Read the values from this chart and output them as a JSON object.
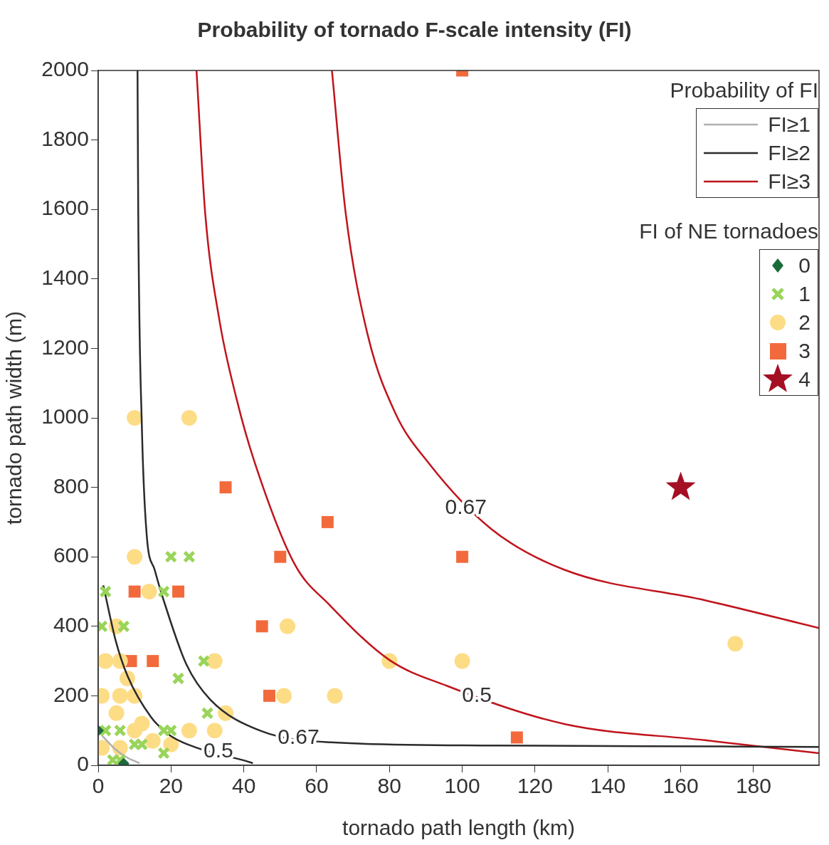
{
  "chart_data": {
    "type": "scatter",
    "title": "Probability of tornado F-scale intensity (FI)",
    "xlabel": "tornado path length (km)",
    "ylabel": "tornado path width (m)",
    "legend_title": "Probability of FI",
    "legend": "top right",
    "grid": false,
    "xlim": [
      0,
      198
    ],
    "xticks": [
      0,
      20,
      40,
      60,
      80,
      100,
      120,
      140,
      160,
      180
    ],
    "ylim": [
      0,
      2000
    ],
    "yticks": [
      0,
      200,
      400,
      600,
      800,
      1000,
      1200,
      1400,
      1600,
      1800,
      2000
    ],
    "series": [
      {
        "name": "FI≥1",
        "type": "line",
        "marker": "none",
        "color": "#b0b0b0",
        "x": [
          1,
          4.8,
          8,
          11.4
        ],
        "values": [
          86,
          45,
          22,
          6
        ]
      },
      {
        "name": "FI≥2",
        "type": "line",
        "marker": "none",
        "color": "#2b2b2b",
        "x": [
          1.4,
          4.8,
          8.1,
          14.5,
          19.7,
          26.9,
          40,
          42.5
        ],
        "values": [
          518,
          359,
          256,
          139,
          86,
          51,
          14,
          6
        ]
      },
      {
        "type": "line",
        "marker": "none",
        "color": "#2b2b2b",
        "x": [
          10.8,
          11,
          12,
          13.3,
          15.5,
          17.8,
          24.2,
          30.8,
          44.9,
          64,
          108.7,
          150,
          198
        ],
        "values": [
          2000,
          1588,
          973,
          666,
          563,
          481,
          291,
          189,
          98,
          66,
          57,
          55,
          53
        ]
      },
      {
        "name": "FI≥3",
        "type": "line",
        "marker": "none",
        "color": "#c0141c",
        "x": [
          27,
          29.4,
          33.3,
          38,
          43,
          54,
          63.6,
          80,
          95.7,
          128,
          166.7,
          198
        ],
        "values": [
          2000,
          1588,
          1281,
          1055,
          871,
          578,
          461,
          303,
          229,
          119,
          72,
          35
        ]
      },
      {
        "type": "line",
        "marker": "none",
        "color": "#c0141c",
        "x": [
          64.2,
          68,
          74,
          81.6,
          90.7,
          108,
          128,
          166.7,
          198
        ],
        "values": [
          2000,
          1588,
          1240,
          1014,
          871,
          680,
          563,
          475,
          395
        ]
      },
      {
        "name": "0",
        "marker": "diamond",
        "color": "#1b6b3a",
        "x": [
          0,
          7
        ],
        "values": [
          100,
          5
        ]
      },
      {
        "name": "1",
        "marker": "cross",
        "color": "#99d45a",
        "x": [
          2,
          18,
          1,
          7,
          20,
          25,
          29,
          22,
          30,
          2,
          6,
          18,
          20,
          10,
          12,
          18,
          4,
          6
        ],
        "values": [
          500,
          500,
          400,
          400,
          600,
          600,
          300,
          250,
          150,
          100,
          100,
          100,
          100,
          60,
          60,
          35,
          15,
          15
        ]
      },
      {
        "name": "2",
        "marker": "circle",
        "color": "#fddc86",
        "x": [
          10,
          25,
          10,
          14,
          5,
          2,
          6,
          8,
          32,
          1,
          6,
          10,
          5,
          35,
          12,
          10,
          25,
          32,
          15,
          20,
          1,
          6,
          51,
          52,
          65,
          80,
          100,
          175
        ],
        "values": [
          1000,
          1000,
          600,
          500,
          400,
          300,
          300,
          250,
          300,
          200,
          200,
          200,
          150,
          150,
          120,
          100,
          100,
          100,
          70,
          60,
          50,
          50,
          200,
          400,
          200,
          300,
          300,
          350
        ]
      },
      {
        "name": "3",
        "marker": "square",
        "color": "#f26a3c",
        "x": [
          100,
          35,
          63,
          50,
          100,
          45,
          47,
          115,
          10,
          22,
          9,
          15
        ],
        "values": [
          2000,
          800,
          700,
          600,
          600,
          400,
          200,
          80,
          500,
          500,
          300,
          300
        ]
      },
      {
        "name": "4",
        "marker": "star",
        "color": "#a50f24",
        "x": [
          160
        ],
        "values": [
          800
        ]
      }
    ],
    "annotations": [
      "FI of NE tornadoes",
      {
        "text": "0.67",
        "x": 101,
        "y": 740
      },
      {
        "text": "0.5",
        "x": 104,
        "y": 200
      },
      {
        "text": "0.67",
        "x": 55,
        "y": 78
      },
      {
        "text": "0.5",
        "x": 33,
        "y": 40
      }
    ]
  }
}
